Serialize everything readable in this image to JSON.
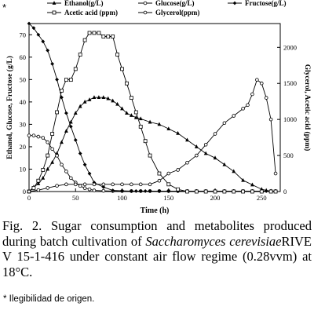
{
  "page_marker": "*",
  "caption": {
    "prefix": "Fig.  2.  Sugar  consumption  and  metabolites produced during batch cultivation of ",
    "species": "Saccharomyces cerevisiae",
    "suffix": "RIVE V 15-1-416 under constant air flow regime (0.28vvm) at 18°C."
  },
  "footnote": "* Ilegibilidad de origen.",
  "chart_data": {
    "type": "line",
    "xlabel": "Time (h)",
    "ylabel_left": "Ethanol, Glucose, Fructose (g/L)",
    "ylabel_right": "Glycerol, Acetic acid (ppm)",
    "xlim": [
      0,
      270
    ],
    "ylim_left": [
      0,
      75
    ],
    "ylim_right": [
      0,
      2330
    ],
    "xticks": [
      0,
      50,
      100,
      150,
      200,
      250
    ],
    "yticks_left": [
      0,
      10,
      20,
      30,
      40,
      50,
      60,
      70
    ],
    "yticks_right": [
      0,
      500,
      1000,
      1500,
      2000
    ],
    "legend_placement": "top",
    "series": [
      {
        "name": "Ethanol(g/L)",
        "axis": "left",
        "marker": "triangle",
        "x": [
          0,
          5,
          10,
          15,
          20,
          25,
          30,
          35,
          40,
          45,
          50,
          55,
          60,
          65,
          70,
          75,
          80,
          85,
          90,
          95,
          100,
          105,
          110,
          115,
          120,
          130,
          140,
          150,
          160,
          170,
          180,
          190,
          200,
          210,
          220,
          230,
          240,
          250,
          255,
          260,
          265
        ],
        "y": [
          0,
          2,
          3.5,
          6,
          10,
          13,
          17,
          22,
          27,
          31,
          35,
          38,
          40,
          41,
          42,
          42,
          42,
          41.5,
          40.5,
          39,
          37,
          35,
          34,
          33,
          32.5,
          31,
          30,
          28,
          26,
          23,
          20,
          17,
          15,
          12,
          9,
          5,
          3,
          1,
          0.5,
          0.2,
          0
        ]
      },
      {
        "name": "Glucose(g/L)",
        "axis": "left",
        "marker": "circle-open",
        "x": [
          0,
          5,
          10,
          15,
          20,
          25,
          30,
          35,
          40,
          45,
          50,
          55,
          60,
          65,
          70,
          80,
          90,
          100,
          110,
          120,
          130,
          140,
          150,
          160,
          170,
          180,
          190,
          200,
          210,
          220,
          230,
          240,
          250,
          260,
          265
        ],
        "y": [
          25,
          25,
          24.5,
          24,
          22,
          19,
          16,
          12,
          9,
          6,
          4,
          2.5,
          1.5,
          1,
          0.5,
          0.3,
          0.2,
          0.2,
          0.2,
          0.2,
          0.2,
          0.2,
          0.2,
          0.2,
          0.2,
          0.2,
          0.2,
          0.2,
          0.2,
          0.2,
          0.2,
          0.2,
          0.2,
          0.2,
          0.2
        ]
      },
      {
        "name": "Fructose(g/L)",
        "axis": "left",
        "marker": "diamond",
        "x": [
          0,
          5,
          10,
          15,
          20,
          25,
          30,
          35,
          40,
          45,
          50,
          55,
          60,
          65,
          70,
          80,
          90,
          100,
          110,
          115,
          120,
          125,
          130,
          140,
          150,
          160,
          170,
          180,
          190,
          200,
          210,
          220,
          230,
          240,
          250,
          255,
          260,
          265
        ],
        "y": [
          75,
          73,
          70,
          67,
          63,
          57,
          50,
          42,
          35,
          29,
          23,
          17,
          12,
          8,
          4,
          2,
          0.5,
          0.3,
          0.2,
          0.2,
          0.2,
          0.2,
          0.2,
          0.2,
          0.2,
          0.2,
          0.2,
          0.2,
          0.2,
          0.2,
          0.2,
          0.2,
          0.2,
          0.2,
          0.2,
          0.2,
          0.2,
          0.2
        ]
      },
      {
        "name": "Acetic acid (ppm)",
        "axis": "right",
        "marker": "square-open",
        "x": [
          0,
          5,
          10,
          15,
          20,
          25,
          30,
          35,
          40,
          45,
          50,
          55,
          60,
          65,
          70,
          75,
          80,
          85,
          90,
          95,
          100,
          105,
          110,
          115,
          120,
          125,
          130,
          140,
          150,
          160,
          170,
          180,
          190,
          200,
          210,
          220,
          230,
          240,
          250,
          260,
          265
        ],
        "y": [
          0,
          50,
          150,
          300,
          500,
          800,
          1100,
          1400,
          1550,
          1550,
          1700,
          1900,
          2100,
          2200,
          2200,
          2200,
          2150,
          2150,
          2150,
          1900,
          1700,
          1500,
          1300,
          1100,
          900,
          700,
          500,
          250,
          100,
          30,
          0,
          0,
          0,
          0,
          0,
          0,
          0,
          0,
          0,
          0,
          0
        ]
      },
      {
        "name": "Glycerol(ppm)",
        "axis": "right",
        "marker": "circle-open",
        "x": [
          0,
          10,
          20,
          30,
          40,
          50,
          60,
          70,
          80,
          90,
          100,
          110,
          120,
          130,
          140,
          150,
          160,
          170,
          180,
          190,
          200,
          210,
          220,
          230,
          235,
          240,
          245,
          250,
          255,
          260,
          265
        ],
        "y": [
          0,
          20,
          50,
          80,
          100,
          100,
          100,
          100,
          100,
          100,
          100,
          100,
          100,
          100,
          150,
          250,
          300,
          400,
          500,
          650,
          800,
          950,
          1050,
          1150,
          1200,
          1350,
          1550,
          1500,
          1300,
          1000,
          250
        ]
      }
    ]
  }
}
